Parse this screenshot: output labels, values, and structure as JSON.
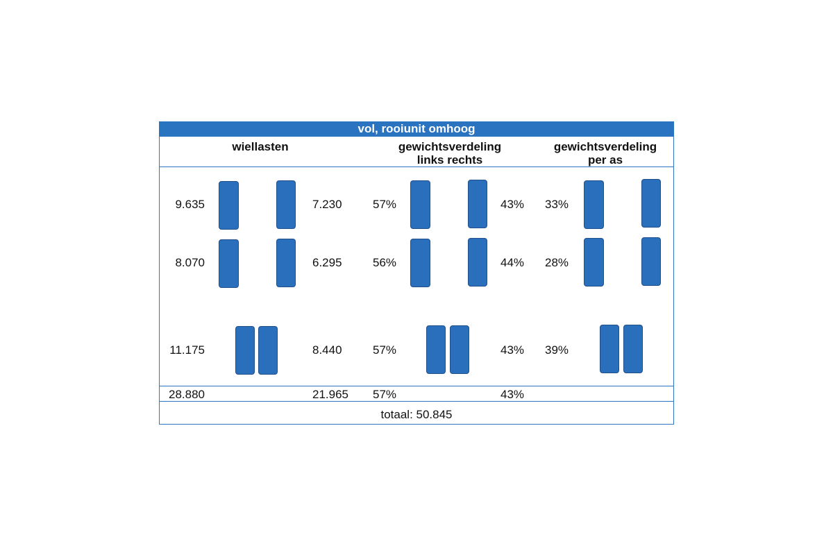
{
  "title": "vol, rooiunit omhoog",
  "headers": {
    "wiellasten": "wiellasten",
    "lr": "gewichtsverdeling\nlinks rechts",
    "as": "gewichtsverdeling\nper as"
  },
  "rows": [
    {
      "left_load": "9.635",
      "right_load": "7.230",
      "left_pct": "57%",
      "right_pct": "43%",
      "axle_pct": "33%"
    },
    {
      "left_load": "8.070",
      "right_load": "6.295",
      "left_pct": "56%",
      "right_pct": "44%",
      "axle_pct": "28%"
    },
    {
      "left_load": "11.175",
      "right_load": "8.440",
      "left_pct": "57%",
      "right_pct": "43%",
      "axle_pct": "39%"
    }
  ],
  "sums": {
    "left_load": "28.880",
    "right_load": "21.965",
    "left_pct": "57%",
    "right_pct": "43%"
  },
  "total_text": "totaal: 50.845",
  "colors": {
    "accent": "#2a73c1",
    "wheel": "#2a6fbb",
    "wheel_border": "#1f4e8a"
  }
}
